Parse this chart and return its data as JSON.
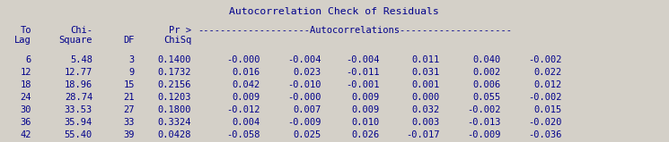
{
  "title": "Autocorrelation Check of Residuals",
  "bg_color": "#d4d0c8",
  "text_color": "#00008B",
  "rows": [
    [
      6,
      5.48,
      3,
      "0.1400",
      "-0.000",
      "-0.004",
      "-0.004",
      "0.011",
      "0.040",
      "-0.002"
    ],
    [
      12,
      12.77,
      9,
      "0.1732",
      "0.016",
      "0.023",
      "-0.011",
      "0.031",
      "0.002",
      "0.022"
    ],
    [
      18,
      18.96,
      15,
      "0.2156",
      "0.042",
      "-0.010",
      "-0.001",
      "0.001",
      "0.006",
      "0.012"
    ],
    [
      24,
      28.74,
      21,
      "0.1203",
      "0.009",
      "-0.000",
      "0.009",
      "0.000",
      "0.055",
      "-0.002"
    ],
    [
      30,
      33.53,
      27,
      "0.1800",
      "-0.012",
      "0.007",
      "0.009",
      "0.032",
      "-0.002",
      "0.015"
    ],
    [
      36,
      35.94,
      33,
      "0.3324",
      "0.004",
      "-0.009",
      "0.010",
      "0.003",
      "-0.013",
      "-0.020"
    ],
    [
      42,
      55.4,
      39,
      "0.0428",
      "-0.058",
      "0.025",
      "0.026",
      "-0.017",
      "-0.009",
      "-0.036"
    ]
  ],
  "font_size": 7.5,
  "title_font_size": 8.2,
  "fig_width": 7.45,
  "fig_height": 1.59,
  "dpi": 100
}
